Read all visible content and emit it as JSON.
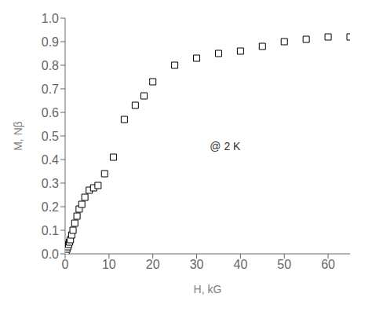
{
  "chart_data": {
    "type": "scatter",
    "x": [
      0.2,
      0.4,
      0.6,
      0.8,
      1.0,
      1.2,
      1.5,
      1.8,
      2.2,
      2.7,
      3.2,
      3.8,
      4.5,
      5.5,
      6.5,
      7.5,
      9.0,
      11.0,
      13.5,
      16.0,
      18.0,
      20.0,
      25.0,
      30.0,
      35.0,
      40.0,
      45.0,
      50.0,
      55.0,
      60.0,
      65.0
    ],
    "values": [
      0.01,
      0.02,
      0.03,
      0.04,
      0.05,
      0.06,
      0.08,
      0.1,
      0.13,
      0.16,
      0.19,
      0.21,
      0.24,
      0.27,
      0.28,
      0.29,
      0.34,
      0.41,
      0.57,
      0.63,
      0.67,
      0.73,
      0.8,
      0.83,
      0.85,
      0.86,
      0.88,
      0.9,
      0.91,
      0.92,
      0.92
    ],
    "xlabel": "H, kG",
    "ylabel": "M, Nβ",
    "annotations": [
      {
        "text": "@ 2 K",
        "x": 33,
        "y": 0.44
      }
    ],
    "xlim": [
      0,
      65
    ],
    "ylim": [
      0.0,
      1.0
    ],
    "xticks": [
      0,
      10,
      20,
      30,
      40,
      50,
      60
    ],
    "yticks": [
      {
        "value": 0.0,
        "label": "0.0"
      },
      0.1,
      0.2,
      0.3,
      0.4,
      0.5,
      0.6,
      0.7,
      0.8,
      0.9,
      {
        "value": 1.0,
        "label": "1.0"
      }
    ],
    "marker": "square",
    "color": "#000000",
    "grid": false
  }
}
